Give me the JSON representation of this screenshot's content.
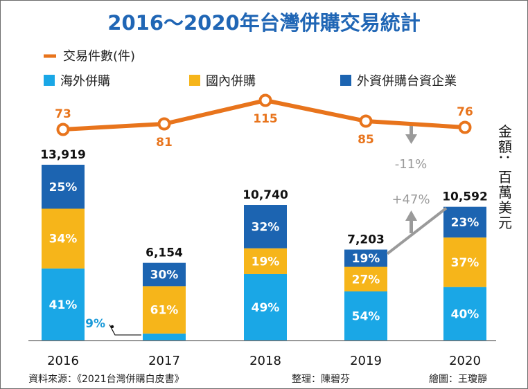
{
  "chart_data": {
    "type": "bar",
    "title": "2016～2020年台灣併購交易統計",
    "categories": [
      "2016",
      "2017",
      "2018",
      "2019",
      "2020"
    ],
    "totals": [
      13919,
      6154,
      10740,
      7203,
      10592
    ],
    "total_labels": [
      "13,919",
      "6,154",
      "10,740",
      "7,203",
      "10,592"
    ],
    "series": [
      {
        "name": "海外併購",
        "color": "#1aa7e6",
        "values": [
          41,
          9,
          49,
          54,
          40
        ],
        "labels": [
          "41%",
          "9%",
          "49%",
          "54%",
          "40%"
        ]
      },
      {
        "name": "國內併購",
        "color": "#f6b51a",
        "values": [
          34,
          61,
          19,
          27,
          37
        ],
        "labels": [
          "34%",
          "61%",
          "19%",
          "27%",
          "37%"
        ]
      },
      {
        "name": "外資併購台資企業",
        "color": "#1c64b1",
        "values": [
          25,
          30,
          32,
          19,
          23
        ],
        "labels": [
          "25%",
          "30%",
          "32%",
          "19%",
          "23%"
        ]
      }
    ],
    "line_series": {
      "name": "交易件數(件)",
      "color": "#e8741c",
      "values": [
        73,
        81,
        115,
        85,
        76
      ],
      "labels": [
        "73",
        "81",
        "115",
        "85",
        "76"
      ]
    },
    "annotations": [
      {
        "text": "-11%",
        "color": "#9a9a9a"
      },
      {
        "text": "+47%",
        "color": "#9a9a9a"
      }
    ],
    "unit_label": "金額：百萬美元",
    "ylim": [
      0,
      14500
    ],
    "line_ylim": [
      60,
      125
    ],
    "grid": false,
    "legend_position": "top-left"
  },
  "footer": {
    "source": "資料來源：《2021台灣併購白皮書》",
    "compiled": "整理：陳碧芬",
    "drawn": "繪圖：王瓊靜"
  }
}
